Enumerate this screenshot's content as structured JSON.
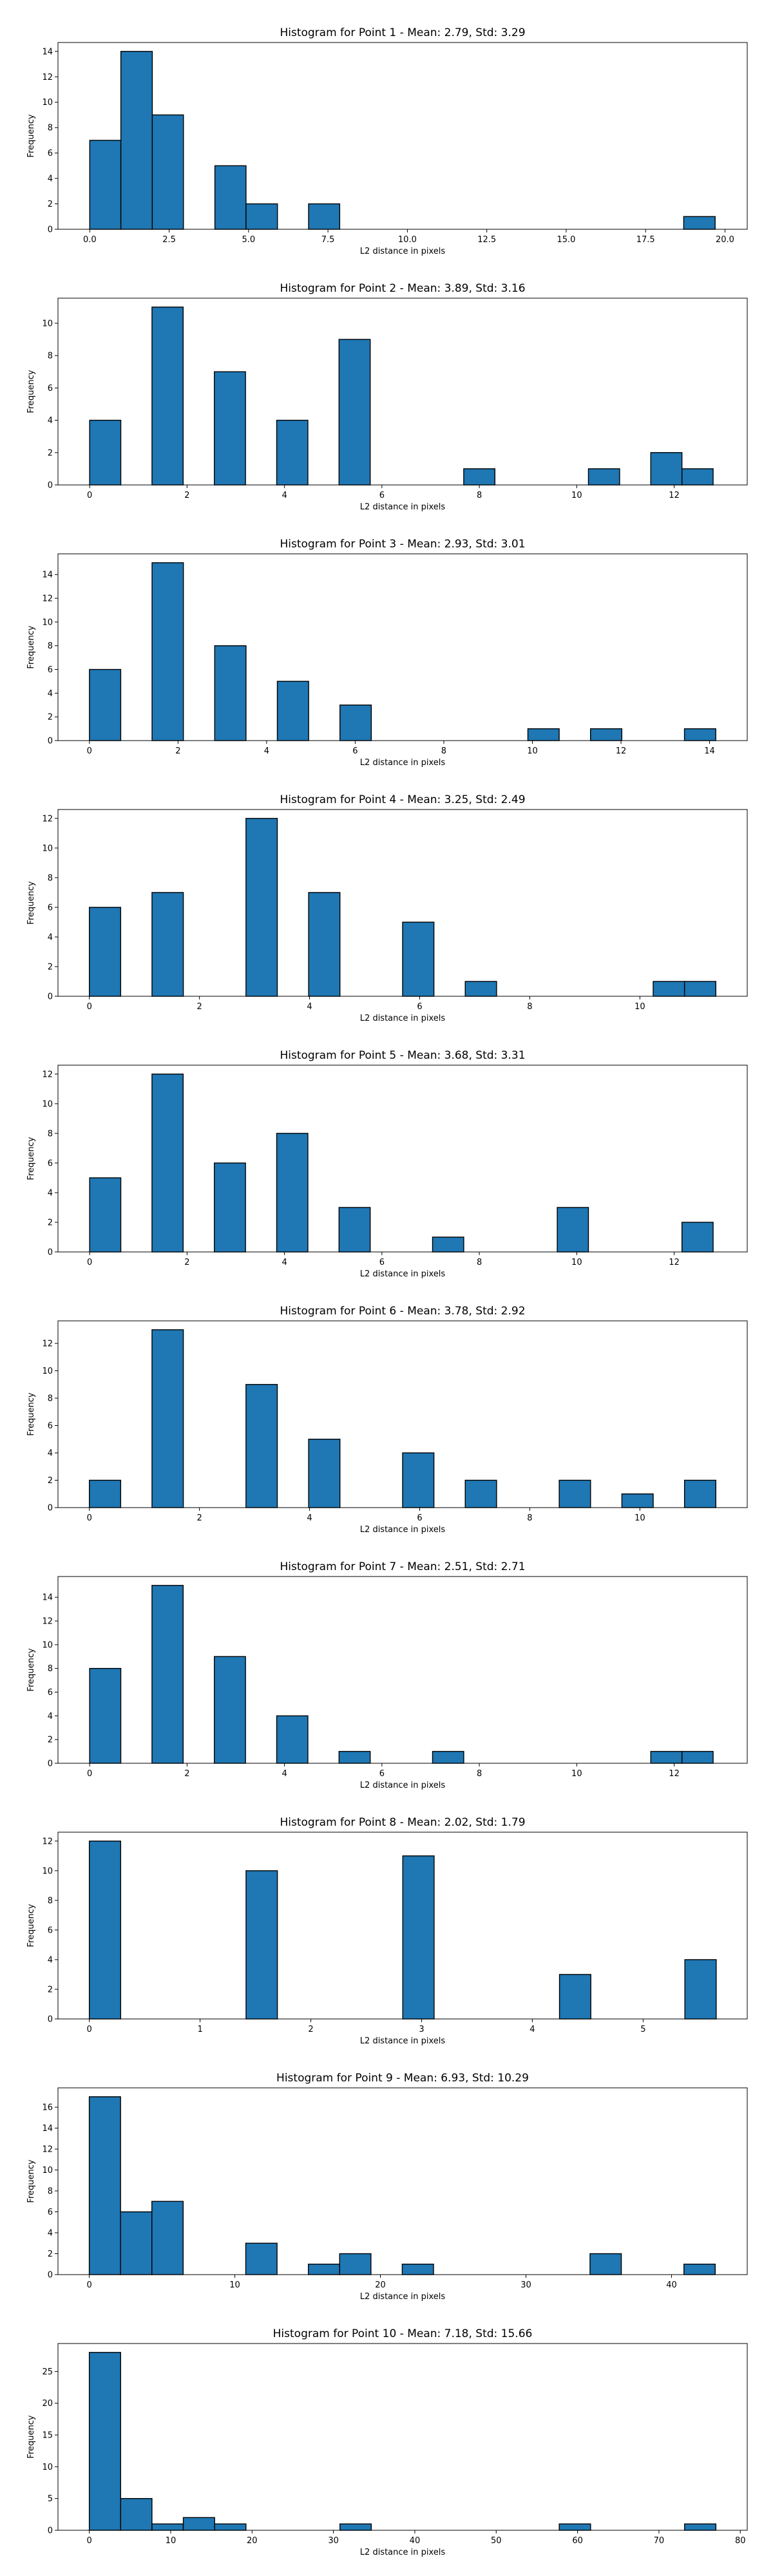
{
  "chart_data": [
    {
      "type": "bar",
      "title": "Histogram for Point 1 - Mean: 2.79, Std: 3.29",
      "xlabel": "L2 distance in pixels",
      "ylabel": "Frequency",
      "xlim": [
        -1.0,
        20.7
      ],
      "ylim": [
        0,
        14.7
      ],
      "xticks": [
        0.0,
        2.5,
        5.0,
        7.5,
        10.0,
        12.5,
        15.0,
        17.5,
        20.0
      ],
      "xtick_labels": [
        "0.0",
        "2.5",
        "5.0",
        "7.5",
        "10.0",
        "12.5",
        "15.0",
        "17.5",
        "20.0"
      ],
      "yticks": [
        0,
        2,
        4,
        6,
        8,
        10,
        12,
        14
      ],
      "bin_edges": [
        0.0,
        0.98,
        1.97,
        2.95,
        3.94,
        4.92,
        5.91,
        6.89,
        7.87,
        8.86,
        9.84,
        10.83,
        11.81,
        12.8,
        13.78,
        14.76,
        15.75,
        16.73,
        17.72,
        18.7,
        19.69
      ],
      "values": [
        7,
        14,
        9,
        0,
        5,
        2,
        0,
        2,
        0,
        0,
        0,
        0,
        0,
        0,
        0,
        0,
        0,
        0,
        0,
        1
      ]
    },
    {
      "type": "bar",
      "title": "Histogram for Point 2 - Mean: 3.89, Std: 3.16",
      "xlabel": "L2 distance in pixels",
      "ylabel": "Frequency",
      "xlim": [
        -0.65,
        13.5
      ],
      "ylim": [
        0,
        11.55
      ],
      "xticks": [
        0,
        2,
        4,
        6,
        8,
        10,
        12
      ],
      "xtick_labels": [
        "0",
        "2",
        "4",
        "6",
        "8",
        "10",
        "12"
      ],
      "yticks": [
        0,
        2,
        4,
        6,
        8,
        10
      ],
      "bin_edges": [
        0.0,
        0.64,
        1.28,
        1.92,
        2.56,
        3.2,
        3.84,
        4.48,
        5.12,
        5.76,
        6.4,
        7.04,
        7.68,
        8.32,
        8.96,
        9.6,
        10.24,
        10.88,
        11.52,
        12.16,
        12.8
      ],
      "values": [
        4,
        0,
        11,
        0,
        7,
        0,
        4,
        0,
        9,
        0,
        0,
        0,
        1,
        0,
        0,
        0,
        1,
        0,
        2,
        1
      ]
    },
    {
      "type": "bar",
      "title": "Histogram for Point 3 - Mean: 2.93, Std: 3.01",
      "xlabel": "L2 distance in pixels",
      "ylabel": "Frequency",
      "xlim": [
        -0.71,
        14.85
      ],
      "ylim": [
        0,
        15.75
      ],
      "xticks": [
        0,
        2,
        4,
        6,
        8,
        10,
        12,
        14
      ],
      "xtick_labels": [
        "0",
        "2",
        "4",
        "6",
        "8",
        "10",
        "12",
        "14"
      ],
      "yticks": [
        0,
        2,
        4,
        6,
        8,
        10,
        12,
        14
      ],
      "bin_edges": [
        0.0,
        0.707,
        1.414,
        2.121,
        2.828,
        3.535,
        4.242,
        4.949,
        5.656,
        6.363,
        7.07,
        7.777,
        8.484,
        9.191,
        9.898,
        10.605,
        11.312,
        12.019,
        12.726,
        13.433,
        14.14
      ],
      "values": [
        6,
        0,
        15,
        0,
        8,
        0,
        5,
        0,
        3,
        0,
        0,
        0,
        0,
        0,
        1,
        0,
        1,
        0,
        0,
        1
      ]
    },
    {
      "type": "bar",
      "title": "Histogram for Point 4 - Mean: 3.25, Std: 2.49",
      "xlabel": "L2 distance in pixels",
      "ylabel": "Frequency",
      "xlim": [
        -0.57,
        11.95
      ],
      "ylim": [
        0,
        12.6
      ],
      "xticks": [
        0,
        2,
        4,
        6,
        8,
        10
      ],
      "xtick_labels": [
        "0",
        "2",
        "4",
        "6",
        "8",
        "10"
      ],
      "yticks": [
        0,
        2,
        4,
        6,
        8,
        10,
        12
      ],
      "bin_edges": [
        0.0,
        0.569,
        1.138,
        1.707,
        2.276,
        2.845,
        3.414,
        3.983,
        4.552,
        5.121,
        5.69,
        6.259,
        6.828,
        7.397,
        7.966,
        8.535,
        9.104,
        9.673,
        10.242,
        10.811,
        11.38
      ],
      "values": [
        6,
        0,
        7,
        0,
        0,
        12,
        0,
        7,
        0,
        0,
        5,
        0,
        1,
        0,
        0,
        0,
        0,
        0,
        1,
        1
      ]
    },
    {
      "type": "bar",
      "title": "Histogram for Point 5 - Mean: 3.68, Std: 3.31",
      "xlabel": "L2 distance in pixels",
      "ylabel": "Frequency",
      "xlim": [
        -0.65,
        13.5
      ],
      "ylim": [
        0,
        12.6
      ],
      "xticks": [
        0,
        2,
        4,
        6,
        8,
        10,
        12
      ],
      "xtick_labels": [
        "0",
        "2",
        "4",
        "6",
        "8",
        "10",
        "12"
      ],
      "yticks": [
        0,
        2,
        4,
        6,
        8,
        10,
        12
      ],
      "bin_edges": [
        0.0,
        0.64,
        1.28,
        1.92,
        2.56,
        3.2,
        3.84,
        4.48,
        5.12,
        5.76,
        6.4,
        7.04,
        7.68,
        8.32,
        8.96,
        9.6,
        10.24,
        10.88,
        11.52,
        12.16,
        12.8
      ],
      "values": [
        5,
        0,
        12,
        0,
        6,
        0,
        8,
        0,
        3,
        0,
        0,
        1,
        0,
        0,
        0,
        3,
        0,
        0,
        0,
        2
      ]
    },
    {
      "type": "bar",
      "title": "Histogram for Point 6 - Mean: 3.78, Std: 2.92",
      "xlabel": "L2 distance in pixels",
      "ylabel": "Frequency",
      "xlim": [
        -0.57,
        11.95
      ],
      "ylim": [
        0,
        13.65
      ],
      "xticks": [
        0,
        2,
        4,
        6,
        8,
        10
      ],
      "xtick_labels": [
        "0",
        "2",
        "4",
        "6",
        "8",
        "10"
      ],
      "yticks": [
        0,
        2,
        4,
        6,
        8,
        10,
        12
      ],
      "bin_edges": [
        0.0,
        0.569,
        1.138,
        1.707,
        2.276,
        2.845,
        3.414,
        3.983,
        4.552,
        5.121,
        5.69,
        6.259,
        6.828,
        7.397,
        7.966,
        8.535,
        9.104,
        9.673,
        10.242,
        10.811,
        11.38
      ],
      "values": [
        2,
        0,
        13,
        0,
        0,
        9,
        0,
        5,
        0,
        0,
        4,
        0,
        2,
        0,
        0,
        2,
        0,
        1,
        0,
        2
      ]
    },
    {
      "type": "bar",
      "title": "Histogram for Point 7 - Mean: 2.51, Std: 2.71",
      "xlabel": "L2 distance in pixels",
      "ylabel": "Frequency",
      "xlim": [
        -0.65,
        13.5
      ],
      "ylim": [
        0,
        15.75
      ],
      "xticks": [
        0,
        2,
        4,
        6,
        8,
        10,
        12
      ],
      "xtick_labels": [
        "0",
        "2",
        "4",
        "6",
        "8",
        "10",
        "12"
      ],
      "yticks": [
        0,
        2,
        4,
        6,
        8,
        10,
        12,
        14
      ],
      "bin_edges": [
        0.0,
        0.64,
        1.28,
        1.92,
        2.56,
        3.2,
        3.84,
        4.48,
        5.12,
        5.76,
        6.4,
        7.04,
        7.68,
        8.32,
        8.96,
        9.6,
        10.24,
        10.88,
        11.52,
        12.16,
        12.8
      ],
      "values": [
        8,
        0,
        15,
        0,
        9,
        0,
        4,
        0,
        1,
        0,
        0,
        1,
        0,
        0,
        0,
        0,
        0,
        0,
        1,
        1
      ]
    },
    {
      "type": "bar",
      "title": "Histogram for Point 8 - Mean: 2.02, Std: 1.79",
      "xlabel": "L2 distance in pixels",
      "ylabel": "Frequency",
      "xlim": [
        -0.283,
        5.94
      ],
      "ylim": [
        0,
        12.6
      ],
      "xticks": [
        0,
        1,
        2,
        3,
        4,
        5
      ],
      "xtick_labels": [
        "0",
        "1",
        "2",
        "3",
        "4",
        "5"
      ],
      "yticks": [
        0,
        2,
        4,
        6,
        8,
        10,
        12
      ],
      "bin_edges": [
        0.0,
        0.283,
        0.566,
        0.849,
        1.132,
        1.415,
        1.698,
        1.981,
        2.264,
        2.547,
        2.83,
        3.113,
        3.396,
        3.679,
        3.962,
        4.245,
        4.528,
        4.811,
        5.094,
        5.377,
        5.66
      ],
      "values": [
        12,
        0,
        0,
        0,
        0,
        10,
        0,
        0,
        0,
        0,
        11,
        0,
        0,
        0,
        0,
        3,
        0,
        0,
        0,
        4
      ]
    },
    {
      "type": "bar",
      "title": "Histogram for Point 9 - Mean: 6.93, Std: 10.29",
      "xlabel": "L2 distance in pixels",
      "ylabel": "Frequency",
      "xlim": [
        -2.15,
        45.2
      ],
      "ylim": [
        0,
        17.85
      ],
      "xticks": [
        0,
        10,
        20,
        30,
        40
      ],
      "xtick_labels": [
        "0",
        "10",
        "20",
        "30",
        "40"
      ],
      "yticks": [
        0,
        2,
        4,
        6,
        8,
        10,
        12,
        14,
        16
      ],
      "bin_edges": [
        0.0,
        2.15,
        4.3,
        6.45,
        8.6,
        10.75,
        12.9,
        15.05,
        17.2,
        19.35,
        21.5,
        23.65,
        25.8,
        27.95,
        30.1,
        32.25,
        34.4,
        36.55,
        38.7,
        40.85,
        43.0
      ],
      "values": [
        17,
        6,
        7,
        0,
        0,
        3,
        0,
        1,
        2,
        0,
        1,
        0,
        0,
        0,
        0,
        0,
        2,
        0,
        0,
        1
      ]
    },
    {
      "type": "bar",
      "title": "Histogram for Point 10 - Mean: 7.18, Std: 15.66",
      "xlabel": "L2 distance in pixels",
      "ylabel": "Frequency",
      "xlim": [
        -3.85,
        80.85
      ],
      "ylim": [
        0,
        29.4
      ],
      "xticks": [
        0,
        10,
        20,
        30,
        40,
        50,
        60,
        70,
        80
      ],
      "xtick_labels": [
        "0",
        "10",
        "20",
        "30",
        "40",
        "50",
        "60",
        "70",
        "80"
      ],
      "yticks": [
        0,
        5,
        10,
        15,
        20,
        25
      ],
      "bin_edges": [
        0.0,
        3.85,
        7.7,
        11.55,
        15.4,
        19.25,
        23.1,
        26.95,
        30.8,
        34.65,
        38.5,
        42.35,
        46.2,
        50.05,
        53.9,
        57.75,
        61.6,
        65.45,
        69.3,
        73.15,
        77.0
      ],
      "values": [
        28,
        5,
        1,
        2,
        1,
        0,
        0,
        0,
        1,
        0,
        0,
        0,
        0,
        0,
        0,
        1,
        0,
        0,
        0,
        1
      ]
    }
  ]
}
